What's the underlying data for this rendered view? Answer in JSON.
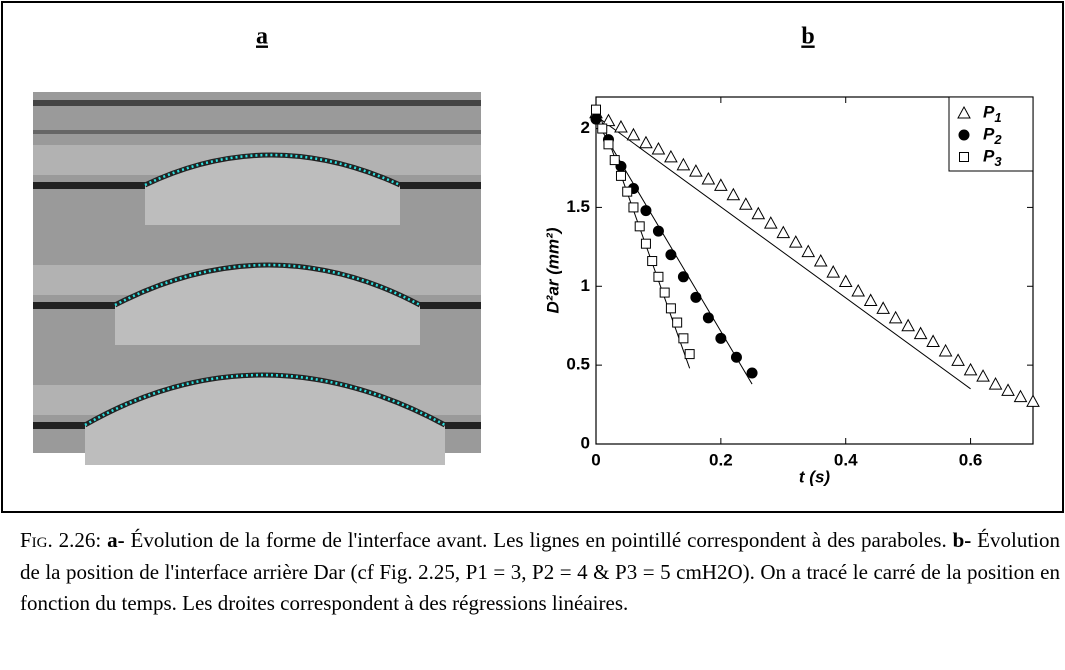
{
  "panels": {
    "a": "a",
    "b": "b"
  },
  "chart_data": {
    "type": "scatter",
    "xlabel": "t (s)",
    "ylabel": "D²ar (mm²)",
    "xlim": [
      0,
      0.7
    ],
    "ylim": [
      0,
      2.2
    ],
    "xticks": [
      0,
      0.2,
      0.4,
      0.6
    ],
    "yticks": [
      0,
      0.5,
      1,
      1.5,
      2
    ],
    "legend": "upper right",
    "series": [
      {
        "name": "P1",
        "marker": "triangle",
        "color": "#000000",
        "filled": false,
        "x": [
          0,
          0.02,
          0.04,
          0.06,
          0.08,
          0.1,
          0.12,
          0.14,
          0.16,
          0.18,
          0.2,
          0.22,
          0.24,
          0.26,
          0.28,
          0.3,
          0.32,
          0.34,
          0.36,
          0.38,
          0.4,
          0.42,
          0.44,
          0.46,
          0.48,
          0.5,
          0.52,
          0.54,
          0.56,
          0.58,
          0.6,
          0.62,
          0.64,
          0.66,
          0.68,
          0.7
        ],
        "values": [
          2.1,
          2.05,
          2.01,
          1.96,
          1.91,
          1.87,
          1.82,
          1.77,
          1.73,
          1.68,
          1.64,
          1.58,
          1.52,
          1.46,
          1.4,
          1.34,
          1.28,
          1.22,
          1.16,
          1.09,
          1.03,
          0.97,
          0.91,
          0.86,
          0.8,
          0.75,
          0.7,
          0.65,
          0.59,
          0.53,
          0.47,
          0.43,
          0.38,
          0.34,
          0.3,
          0.27
        ],
        "fit_x": [
          0,
          0.6
        ],
        "fit_y": [
          2.08,
          0.35
        ]
      },
      {
        "name": "P2",
        "marker": "circle",
        "color": "#000000",
        "filled": true,
        "x": [
          0,
          0.02,
          0.04,
          0.06,
          0.08,
          0.1,
          0.12,
          0.14,
          0.16,
          0.18,
          0.2,
          0.225,
          0.25
        ],
        "values": [
          2.06,
          1.93,
          1.76,
          1.62,
          1.48,
          1.35,
          1.2,
          1.06,
          0.93,
          0.8,
          0.67,
          0.55,
          0.45
        ],
        "fit_x": [
          0,
          0.25
        ],
        "fit_y": [
          2.05,
          0.38
        ]
      },
      {
        "name": "P3",
        "marker": "square",
        "color": "#000000",
        "filled": false,
        "x": [
          0,
          0.01,
          0.02,
          0.03,
          0.04,
          0.05,
          0.06,
          0.07,
          0.08,
          0.09,
          0.1,
          0.11,
          0.12,
          0.13,
          0.14,
          0.15
        ],
        "values": [
          2.12,
          2.0,
          1.9,
          1.8,
          1.7,
          1.6,
          1.5,
          1.38,
          1.27,
          1.16,
          1.06,
          0.96,
          0.86,
          0.77,
          0.67,
          0.57
        ],
        "fit_x": [
          0,
          0.15
        ],
        "fit_y": [
          2.15,
          0.48
        ]
      }
    ]
  },
  "caption": {
    "label": "Fig. 2.26:",
    "parts": [
      {
        "text": "a-",
        "bold": true
      },
      {
        "text": " Évolution de la forme de l'interface avant. Les lignes en pointillé correspondent à des paraboles. ",
        "bold": false
      },
      {
        "text": "b-",
        "bold": true
      },
      {
        "text": " Évolution de la position de l'interface arrière Dar (cf Fig. 2.25, P1 = 3, P2 = 4 & P3 = 5 cmH2O). On a tracé le carré de la position en fonction du temps. Les droites correspondent à des régressions linéaires.",
        "bold": false
      }
    ]
  }
}
